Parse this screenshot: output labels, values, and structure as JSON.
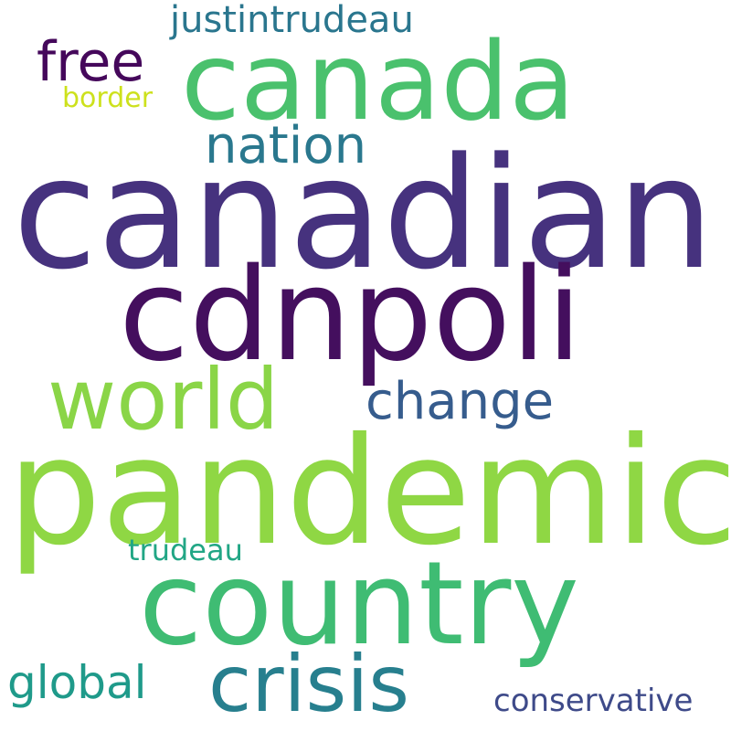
{
  "colors": {
    "background": "#ffffff"
  },
  "words": {
    "canadian": {
      "text": "canadian",
      "color": "#46327e"
    },
    "pandemic": {
      "text": "pandemic",
      "color": "#8fd744"
    },
    "cdnpoli": {
      "text": "cdnpoli",
      "color": "#440f5e"
    },
    "country": {
      "text": "country",
      "color": "#3fbc73"
    },
    "canada": {
      "text": "canada",
      "color": "#4ac16d"
    },
    "world": {
      "text": "world",
      "color": "#8ad547"
    },
    "crisis": {
      "text": "crisis",
      "color": "#277f8e"
    },
    "change": {
      "text": "change",
      "color": "#365c8d"
    },
    "nation": {
      "text": "nation",
      "color": "#2a788e"
    },
    "free": {
      "text": "free",
      "color": "#45085b"
    },
    "global": {
      "text": "global",
      "color": "#1f9a8a"
    },
    "justintrudeau": {
      "text": "justintrudeau",
      "color": "#2a768e"
    },
    "conservative": {
      "text": "conservative",
      "color": "#3e4a89"
    },
    "trudeau": {
      "text": "trudeau",
      "color": "#21a685"
    },
    "border": {
      "text": "border",
      "color": "#cde11d"
    }
  }
}
